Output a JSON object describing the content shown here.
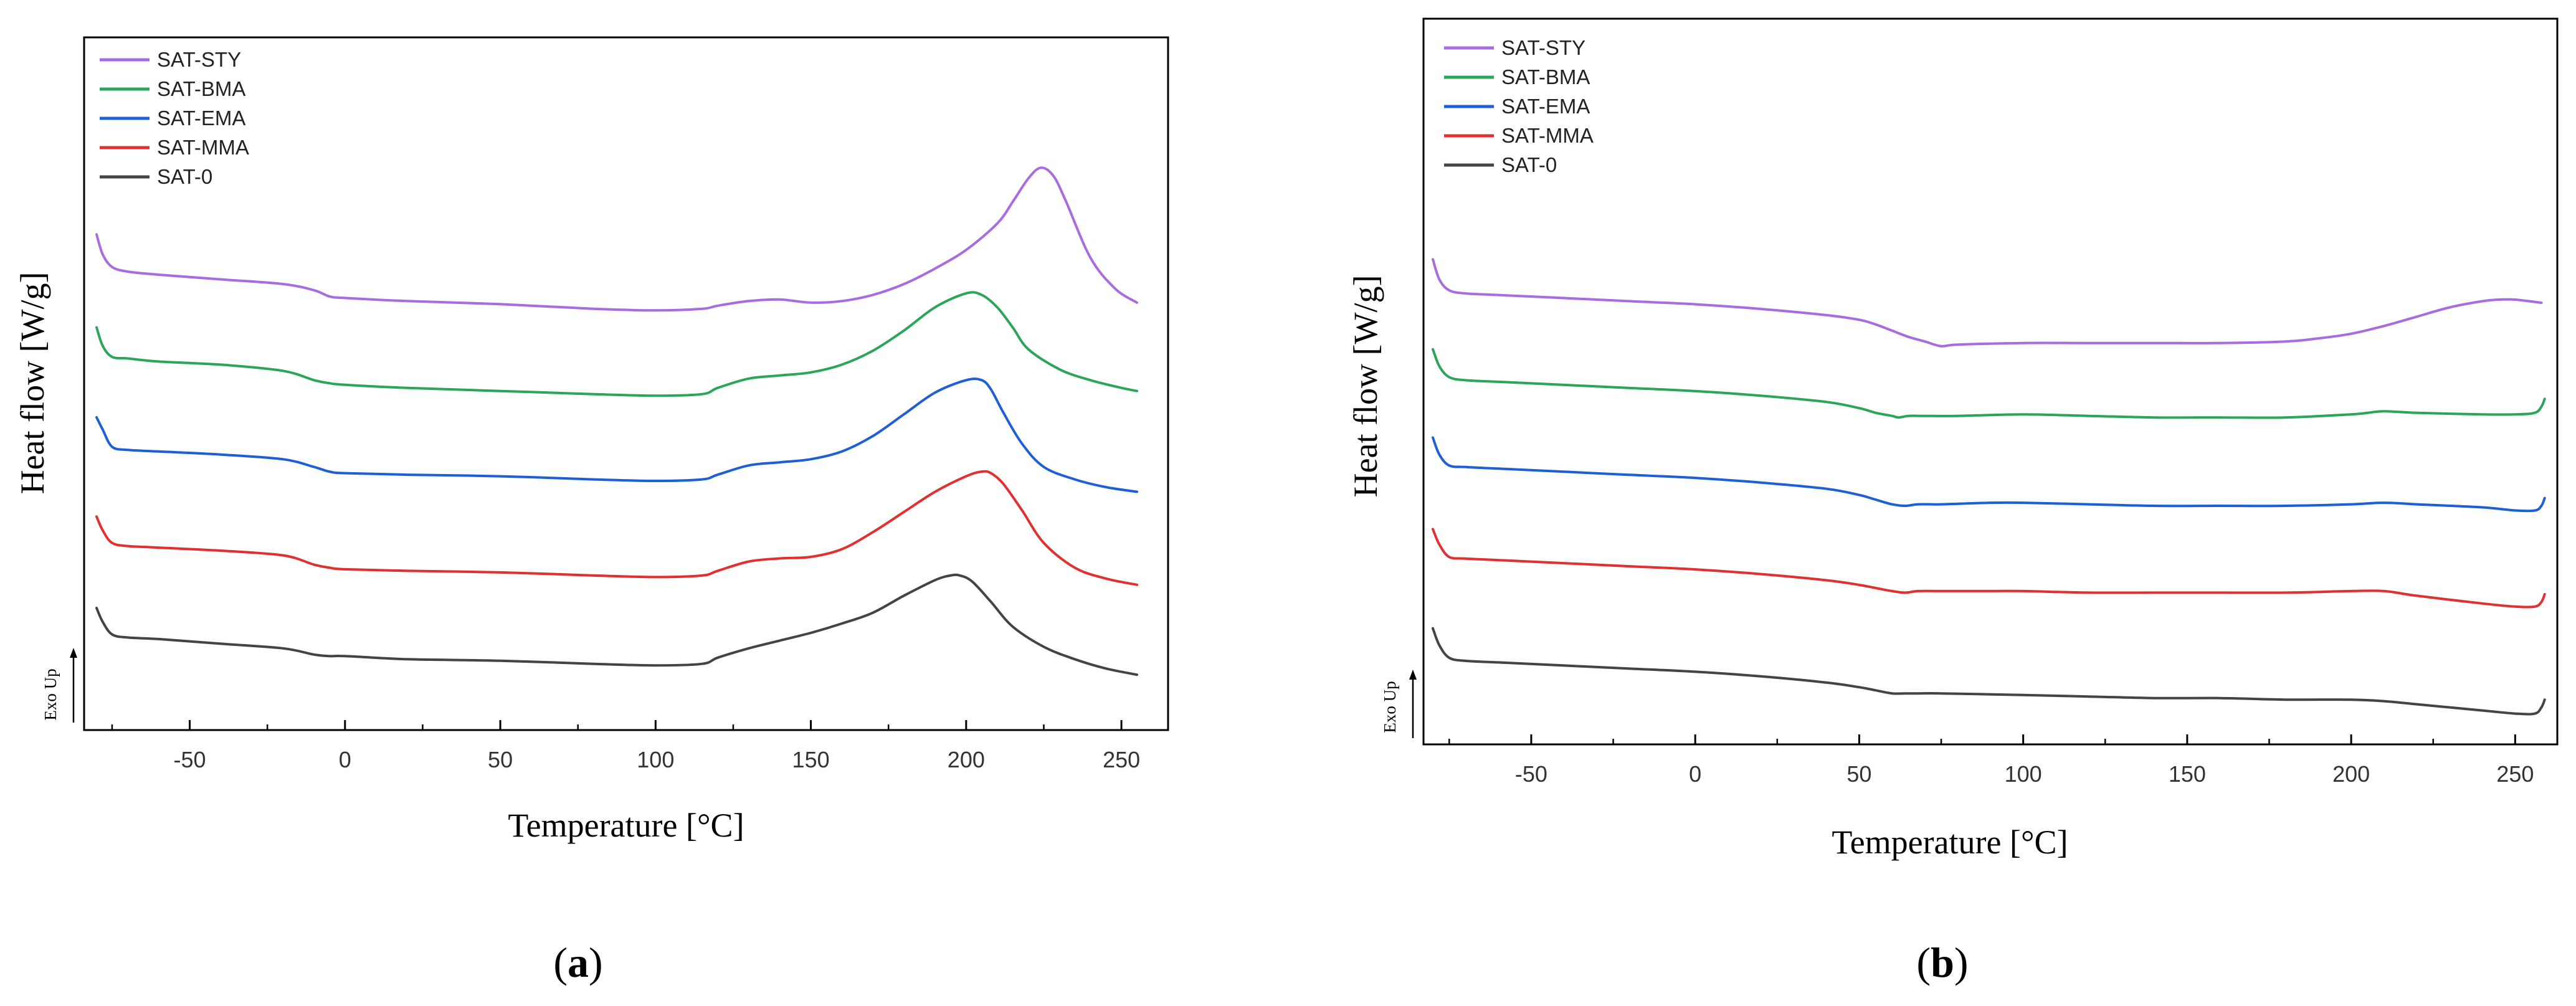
{
  "chart_data": [
    {
      "type": "line",
      "panel_label": "a",
      "title": "",
      "xlabel": "Temperature [°C]",
      "ylabel": "Heat flow [W/g]",
      "direction_label": "Exo Up",
      "xlim": [
        -80,
        257
      ],
      "ylim": [
        0,
        360
      ],
      "xticks": [
        -50,
        0,
        50,
        100,
        150,
        200,
        250
      ],
      "tick_labels": [
        "-50",
        "0",
        "50",
        "100",
        "150",
        "200",
        "250"
      ],
      "grid": false,
      "legend_position": "top-left",
      "legend": [
        {
          "name": "SAT-STY",
          "color": "#a86be0"
        },
        {
          "name": "SAT-BMA",
          "color": "#2aa55a"
        },
        {
          "name": "SAT-EMA",
          "color": "#1f5fd6"
        },
        {
          "name": "SAT-MMA",
          "color": "#e0302f"
        },
        {
          "name": "SAT-0",
          "color": "#444444"
        }
      ],
      "series": [
        {
          "name": "SAT-STY",
          "color": "#a86be0",
          "x": [
            -80,
            -78,
            -75,
            -70,
            -60,
            -40,
            -20,
            -10,
            -5,
            0,
            20,
            50,
            80,
            100,
            115,
            120,
            130,
            140,
            150,
            160,
            170,
            180,
            190,
            200,
            210,
            215,
            220,
            224,
            228,
            232,
            240,
            248,
            255
          ],
          "y": [
            298,
            285,
            277,
            274,
            272,
            269,
            266,
            262,
            258,
            257,
            255,
            253,
            250,
            249,
            250,
            252,
            255,
            256,
            254,
            255,
            259,
            266,
            276,
            288,
            305,
            319,
            334,
            341,
            336,
            320,
            283,
            263,
            254
          ]
        },
        {
          "name": "SAT-BMA",
          "color": "#2aa55a",
          "x": [
            -80,
            -78,
            -75,
            -70,
            -60,
            -40,
            -20,
            -10,
            -5,
            0,
            20,
            50,
            80,
            100,
            115,
            120,
            130,
            140,
            150,
            160,
            170,
            180,
            190,
            200,
            205,
            210,
            215,
            220,
            230,
            240,
            250,
            255
          ],
          "y": [
            238,
            226,
            219,
            218,
            216,
            214,
            210,
            204,
            202,
            201,
            199,
            197,
            195,
            194,
            195,
            199,
            205,
            207,
            209,
            214,
            223,
            236,
            251,
            260,
            259,
            251,
            238,
            224,
            211,
            204,
            199,
            197
          ]
        },
        {
          "name": "SAT-EMA",
          "color": "#1f5fd6",
          "x": [
            -80,
            -78,
            -75,
            -70,
            -60,
            -40,
            -20,
            -10,
            -5,
            0,
            20,
            50,
            80,
            100,
            115,
            120,
            130,
            140,
            150,
            160,
            170,
            180,
            190,
            200,
            205,
            208,
            212,
            218,
            225,
            235,
            245,
            255
          ],
          "y": [
            180,
            172,
            161,
            159,
            158,
            156,
            153,
            148,
            145,
            144,
            143,
            142,
            140,
            139,
            140,
            143,
            149,
            151,
            153,
            158,
            168,
            182,
            196,
            204,
            204,
            198,
            183,
            163,
            148,
            140,
            135,
            132
          ]
        },
        {
          "name": "SAT-MMA",
          "color": "#e0302f",
          "x": [
            -80,
            -78,
            -75,
            -70,
            -60,
            -40,
            -20,
            -10,
            -5,
            0,
            20,
            50,
            80,
            100,
            115,
            120,
            130,
            140,
            150,
            160,
            170,
            180,
            190,
            200,
            205,
            208,
            212,
            218,
            225,
            235,
            245,
            255
          ],
          "y": [
            116,
            107,
            99,
            97,
            96,
            94,
            91,
            85,
            83,
            82,
            81,
            80,
            78,
            77,
            78,
            81,
            87,
            89,
            90,
            95,
            106,
            119,
            132,
            142,
            145,
            144,
            137,
            120,
            99,
            83,
            76,
            72
          ]
        },
        {
          "name": "SAT-0",
          "color": "#444444",
          "x": [
            -80,
            -78,
            -75,
            -70,
            -60,
            -40,
            -20,
            -10,
            -5,
            0,
            20,
            50,
            80,
            100,
            115,
            120,
            130,
            140,
            150,
            160,
            170,
            180,
            190,
            195,
            198,
            202,
            208,
            215,
            225,
            235,
            245,
            255
          ],
          "y": [
            57,
            48,
            40,
            38,
            37,
            34,
            31,
            27,
            26,
            26,
            24,
            23,
            21,
            20,
            21,
            25,
            31,
            36,
            41,
            47,
            54,
            65,
            75,
            78,
            78,
            74,
            61,
            45,
            32,
            24,
            18,
            14
          ]
        }
      ]
    },
    {
      "type": "line",
      "panel_label": "b",
      "title": "",
      "xlabel": "Temperature [°C]",
      "ylabel": "Heat flow [W/g]",
      "direction_label": "Exo Up",
      "xlim": [
        -80,
        260
      ],
      "ylim": [
        0,
        360
      ],
      "xticks": [
        -50,
        0,
        50,
        100,
        150,
        200,
        250
      ],
      "tick_labels": [
        "-50",
        "0",
        "50",
        "100",
        "150",
        "200",
        "250"
      ],
      "grid": false,
      "legend_position": "top-left",
      "legend": [
        {
          "name": "SAT-STY",
          "color": "#a86be0"
        },
        {
          "name": "SAT-BMA",
          "color": "#2aa55a"
        },
        {
          "name": "SAT-EMA",
          "color": "#1f5fd6"
        },
        {
          "name": "SAT-MMA",
          "color": "#e0302f"
        },
        {
          "name": "SAT-0",
          "color": "#444444"
        }
      ],
      "series": [
        {
          "name": "SAT-STY",
          "color": "#a86be0",
          "x": [
            -80,
            -78,
            -75,
            -70,
            -60,
            -40,
            -20,
            0,
            20,
            40,
            50,
            55,
            60,
            65,
            70,
            75,
            80,
            100,
            120,
            140,
            160,
            180,
            190,
            200,
            210,
            220,
            230,
            240,
            245,
            250,
            258
          ],
          "y": [
            298,
            285,
            278,
            276,
            275,
            273,
            271,
            269,
            266,
            262,
            259,
            256,
            252,
            248,
            245,
            242,
            243,
            244,
            244,
            244,
            244,
            245,
            247,
            250,
            255,
            261,
            267,
            271,
            272,
            272,
            270
          ]
        },
        {
          "name": "SAT-BMA",
          "color": "#2aa55a",
          "x": [
            -80,
            -78,
            -75,
            -70,
            -60,
            -40,
            -20,
            0,
            20,
            40,
            50,
            55,
            60,
            62,
            65,
            70,
            80,
            100,
            120,
            140,
            160,
            180,
            200,
            205,
            210,
            220,
            240,
            250,
            256,
            258,
            259
          ],
          "y": [
            240,
            229,
            222,
            220,
            219,
            217,
            215,
            213,
            210,
            206,
            202,
            199,
            197,
            196,
            197,
            197,
            197,
            198,
            197,
            196,
            196,
            196,
            198,
            199,
            200,
            199,
            198,
            198,
            199,
            203,
            208
          ]
        },
        {
          "name": "SAT-EMA",
          "color": "#1f5fd6",
          "x": [
            -80,
            -78,
            -75,
            -70,
            -60,
            -40,
            -20,
            0,
            20,
            40,
            50,
            55,
            60,
            64,
            68,
            75,
            90,
            100,
            120,
            140,
            160,
            180,
            200,
            210,
            220,
            240,
            250,
            256,
            258,
            259
          ],
          "y": [
            183,
            172,
            165,
            164,
            163,
            161,
            159,
            157,
            154,
            150,
            146,
            143,
            140,
            139,
            140,
            140,
            141,
            141,
            140,
            139,
            139,
            139,
            140,
            141,
            140,
            138,
            136,
            136,
            139,
            144
          ]
        },
        {
          "name": "SAT-MMA",
          "color": "#e0302f",
          "x": [
            -80,
            -78,
            -75,
            -70,
            -60,
            -40,
            -20,
            0,
            20,
            40,
            50,
            55,
            60,
            64,
            68,
            75,
            90,
            100,
            120,
            140,
            160,
            180,
            200,
            210,
            220,
            240,
            250,
            256,
            258,
            259
          ],
          "y": [
            124,
            114,
            106,
            105,
            104,
            102,
            100,
            98,
            95,
            91,
            88,
            86,
            84,
            83,
            84,
            84,
            84,
            84,
            83,
            83,
            83,
            83,
            84,
            84,
            81,
            76,
            74,
            74,
            77,
            82
          ]
        },
        {
          "name": "SAT-0",
          "color": "#444444",
          "x": [
            -80,
            -78,
            -75,
            -70,
            -60,
            -40,
            -20,
            0,
            20,
            40,
            50,
            55,
            60,
            64,
            68,
            75,
            100,
            120,
            140,
            160,
            180,
            200,
            210,
            220,
            240,
            250,
            256,
            258,
            259
          ],
          "y": [
            60,
            49,
            41,
            39,
            38,
            36,
            34,
            32,
            29,
            25,
            22,
            20,
            18,
            18,
            18,
            18,
            17,
            16,
            15,
            15,
            14,
            14,
            13,
            11,
            7,
            5,
            5,
            9,
            14
          ]
        }
      ]
    }
  ]
}
